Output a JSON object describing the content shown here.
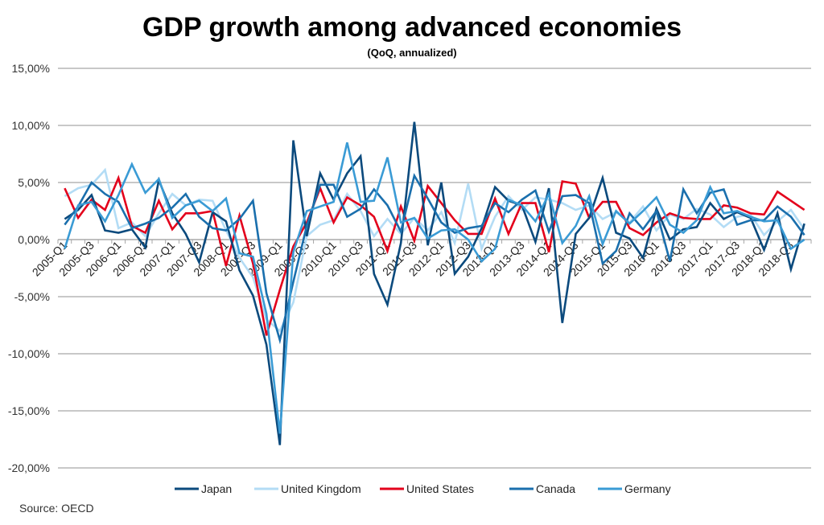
{
  "chart_data": {
    "type": "line",
    "title": "GDP growth among advanced economies",
    "subtitle": "(QoQ, annualized)",
    "xlabel": "",
    "ylabel": "",
    "source": "Source: OECD",
    "ylim": [
      -20,
      15
    ],
    "yticks": [
      15,
      10,
      5,
      0,
      -5,
      -10,
      -15,
      -20
    ],
    "ytick_labels": [
      "15,00%",
      "10,00%",
      "5,00%",
      "0,00%",
      "-5,00%",
      "-10,00%",
      "-15,00%",
      "-20,00%"
    ],
    "grid": true,
    "legend": "bottom",
    "x": [
      "2005-Q1",
      "2005-Q2",
      "2005-Q3",
      "2005-Q4",
      "2006-Q1",
      "2006-Q2",
      "2006-Q3",
      "2006-Q4",
      "2007-Q1",
      "2007-Q2",
      "2007-Q3",
      "2007-Q4",
      "2008-Q1",
      "2008-Q2",
      "2008-Q3",
      "2008-Q4",
      "2009-Q1",
      "2009-Q2",
      "2009-Q3",
      "2009-Q4",
      "2010-Q1",
      "2010-Q2",
      "2010-Q3",
      "2010-Q4",
      "2011-Q1",
      "2011-Q2",
      "2011-Q3",
      "2011-Q4",
      "2012-Q1",
      "2012-Q2",
      "2012-Q3",
      "2012-Q4",
      "2013-Q1",
      "2013-Q2",
      "2013-Q3",
      "2013-Q4",
      "2014-Q1",
      "2014-Q2",
      "2014-Q3",
      "2014-Q4",
      "2015-Q1",
      "2015-Q2",
      "2015-Q3",
      "2015-Q4",
      "2016-Q1",
      "2016-Q2",
      "2016-Q3",
      "2016-Q4",
      "2017-Q1",
      "2017-Q2",
      "2017-Q3",
      "2017-Q4",
      "2018-Q1",
      "2018-Q2",
      "2018-Q3",
      "2018-Q4"
    ],
    "xtick_labels": [
      "2005-Q1",
      "2005-Q3",
      "2006-Q1",
      "2006-Q3",
      "2007-Q1",
      "2007-Q3",
      "2008-Q1",
      "2008-Q3",
      "2009-Q1",
      "2009-Q3",
      "2010-Q1",
      "2010-Q3",
      "2011-Q1",
      "2011-Q3",
      "2012-Q1",
      "2012-Q3",
      "2013-Q1",
      "2013-Q3",
      "2014-Q1",
      "2014-Q3",
      "2015-Q1",
      "2015-Q3",
      "2016-Q1",
      "2016-Q3",
      "2017-Q1",
      "2017-Q3",
      "2018-Q1",
      "2018-Q3"
    ],
    "series": [
      {
        "name": "Japan",
        "color": "#0b4a7d",
        "values": [
          1.8,
          2.6,
          3.9,
          0.8,
          0.6,
          0.9,
          -0.7,
          5.2,
          2.3,
          0.5,
          -2.0,
          2.4,
          1.6,
          -2.7,
          -4.9,
          -9.2,
          -18.0,
          8.7,
          0.3,
          5.8,
          3.5,
          5.8,
          7.3,
          -3.0,
          -5.7,
          -0.3,
          10.3,
          -0.5,
          5.0,
          -3.0,
          -1.5,
          1.0,
          4.6,
          3.4,
          3.0,
          -0.2,
          4.5,
          -7.3,
          0.5,
          1.9,
          5.4,
          0.6,
          0.1,
          -1.6,
          2.7,
          0.0,
          0.9,
          1.1,
          3.2,
          1.8,
          2.4,
          1.9,
          -0.9,
          2.3,
          -2.6,
          1.4
        ]
      },
      {
        "name": "United Kingdom",
        "color": "#b3dcf5",
        "values": [
          3.8,
          4.5,
          4.8,
          6.1,
          1.0,
          1.5,
          0.3,
          2.3,
          4.0,
          3.0,
          3.5,
          3.4,
          0.8,
          -1.6,
          -3.3,
          -7.0,
          -8.0,
          -5.5,
          0.3,
          1.3,
          1.7,
          4.0,
          2.5,
          0.3,
          1.8,
          0.5,
          1.9,
          0.8,
          2.4,
          -0.3,
          4.9,
          -0.8,
          2.0,
          3.8,
          2.6,
          3.7,
          3.5,
          3.2,
          2.6,
          3.0,
          1.8,
          2.4,
          1.5,
          2.9,
          0.8,
          2.2,
          1.8,
          2.7,
          2.2,
          1.1,
          2.0,
          2.2,
          0.4,
          1.6,
          2.6,
          0.9
        ]
      },
      {
        "name": "United States",
        "color": "#e3001b",
        "values": [
          4.5,
          1.9,
          3.5,
          2.6,
          5.4,
          1.2,
          0.6,
          3.4,
          0.9,
          2.3,
          2.3,
          2.5,
          -2.3,
          2.1,
          -2.1,
          -8.4,
          -4.4,
          -0.6,
          1.5,
          4.5,
          1.5,
          3.7,
          3.0,
          2.0,
          -1.0,
          2.9,
          -0.1,
          4.7,
          3.2,
          1.7,
          0.5,
          0.5,
          3.6,
          0.5,
          3.2,
          3.2,
          -1.1,
          5.1,
          4.9,
          1.9,
          3.3,
          3.3,
          1.0,
          0.4,
          1.5,
          2.3,
          1.9,
          1.8,
          1.8,
          3.0,
          2.8,
          2.3,
          2.2,
          4.2,
          3.4,
          2.6
        ]
      },
      {
        "name": "Canada",
        "color": "#1a6fad",
        "values": [
          1.3,
          2.9,
          5.0,
          4.0,
          3.3,
          1.0,
          1.4,
          1.9,
          2.8,
          4.0,
          2.0,
          1.0,
          0.8,
          1.8,
          3.4,
          -4.7,
          -8.8,
          -3.7,
          1.2,
          4.8,
          4.8,
          2.0,
          2.7,
          4.4,
          3.0,
          0.7,
          5.6,
          3.6,
          1.5,
          0.6,
          1.0,
          1.2,
          3.2,
          2.4,
          3.5,
          4.3,
          0.7,
          3.8,
          3.9,
          3.2,
          -2.1,
          -1.0,
          2.3,
          0.9,
          2.5,
          -1.9,
          4.4,
          2.3,
          4.1,
          4.4,
          1.3,
          1.7,
          1.7,
          2.9,
          2.0,
          0.4
        ]
      },
      {
        "name": "Germany",
        "color": "#3a9bd5",
        "values": [
          -0.8,
          3.0,
          3.3,
          1.6,
          3.9,
          6.6,
          4.1,
          5.3,
          1.9,
          3.0,
          3.4,
          2.5,
          3.6,
          -1.2,
          -1.5,
          -6.5,
          -17.0,
          -1.1,
          2.5,
          2.9,
          3.3,
          8.5,
          3.3,
          3.4,
          7.2,
          1.5,
          1.9,
          0.1,
          0.8,
          0.9,
          0.0,
          -1.9,
          -0.8,
          3.5,
          3.0,
          1.6,
          4.0,
          -0.3,
          1.2,
          3.8,
          -0.4,
          2.5,
          1.4,
          2.5,
          3.7,
          1.3,
          0.6,
          1.7,
          4.6,
          2.3,
          2.5,
          2.0,
          1.6,
          1.7,
          -0.8,
          0.0
        ]
      }
    ]
  }
}
